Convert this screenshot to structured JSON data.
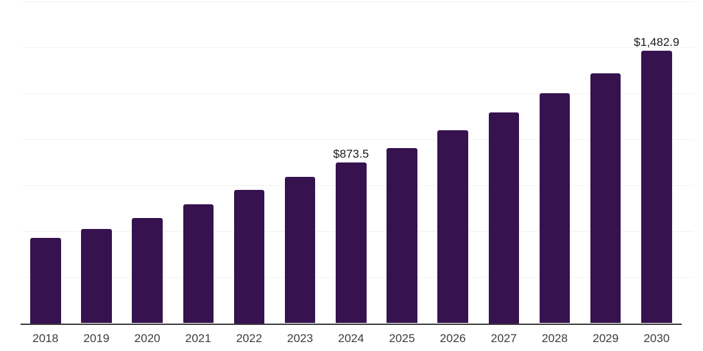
{
  "chart_data": {
    "type": "bar",
    "title": "",
    "xlabel": "",
    "ylabel": "",
    "categories": [
      "2018",
      "2019",
      "2020",
      "2021",
      "2022",
      "2023",
      "2024",
      "2025",
      "2026",
      "2027",
      "2028",
      "2029",
      "2030"
    ],
    "values": [
      464,
      514,
      573,
      646,
      725,
      797,
      873.5,
      954,
      1048,
      1146,
      1250,
      1358,
      1482.9
    ],
    "data_labels": {
      "2024": "$873.5",
      "2030": "$1,482.9"
    },
    "ylim": [
      0,
      1750
    ],
    "gridline_step": 250,
    "grid": "horizontal-only",
    "legend": "none",
    "y_axis_tick_labels": "none",
    "bar_color": "#36124e",
    "axis_line_color": "#3c3c3c",
    "gridline_color": "#f2f2f2",
    "tick_label_color": "#3d3d3d",
    "value_label_color": "#1a1a1a",
    "background_color": "#ffffff"
  }
}
